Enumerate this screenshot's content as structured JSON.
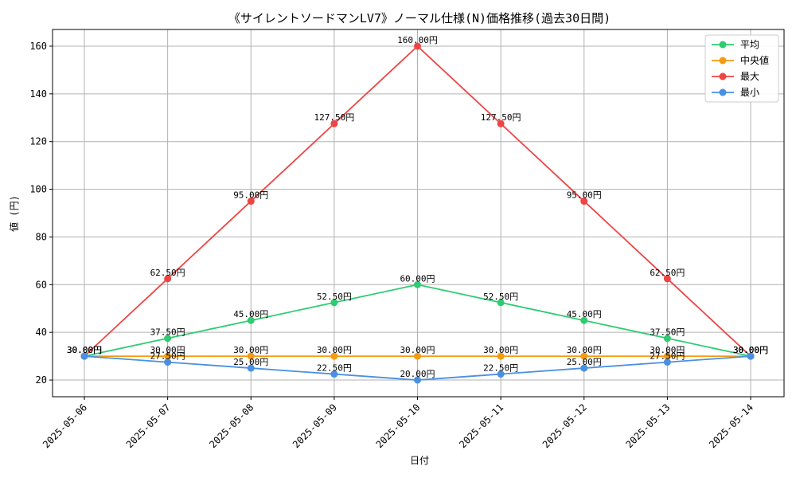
{
  "chart_data": {
    "type": "line",
    "title": "《サイレントソードマンLV7》ノーマル仕様(N)価格推移(過去30日間)",
    "xlabel": "日付",
    "ylabel": "値 (円)",
    "x": [
      "2025-05-06",
      "2025-05-07",
      "2025-05-08",
      "2025-05-09",
      "2025-05-10",
      "2025-05-11",
      "2025-05-12",
      "2025-05-13",
      "2025-05-14"
    ],
    "yticks": [
      20,
      40,
      60,
      80,
      100,
      120,
      140,
      160
    ],
    "ylim": [
      13,
      167
    ],
    "grid": true,
    "legend_position": "top-right",
    "value_suffix": "円",
    "series": [
      {
        "name": "平均",
        "color": "#2ecc71",
        "values": [
          30,
          37.5,
          45,
          52.5,
          60,
          52.5,
          45,
          37.5,
          30
        ]
      },
      {
        "name": "中央値",
        "color": "#f39c12",
        "values": [
          30,
          30,
          30,
          30,
          30,
          30,
          30,
          30,
          30
        ]
      },
      {
        "name": "最大",
        "color": "#ef4444",
        "values": [
          30,
          62.5,
          95,
          127.5,
          160,
          127.5,
          95,
          62.5,
          30
        ]
      },
      {
        "name": "最小",
        "color": "#4a90e2",
        "values": [
          30,
          27.5,
          25,
          22.5,
          20,
          22.5,
          25,
          27.5,
          30
        ]
      }
    ]
  }
}
